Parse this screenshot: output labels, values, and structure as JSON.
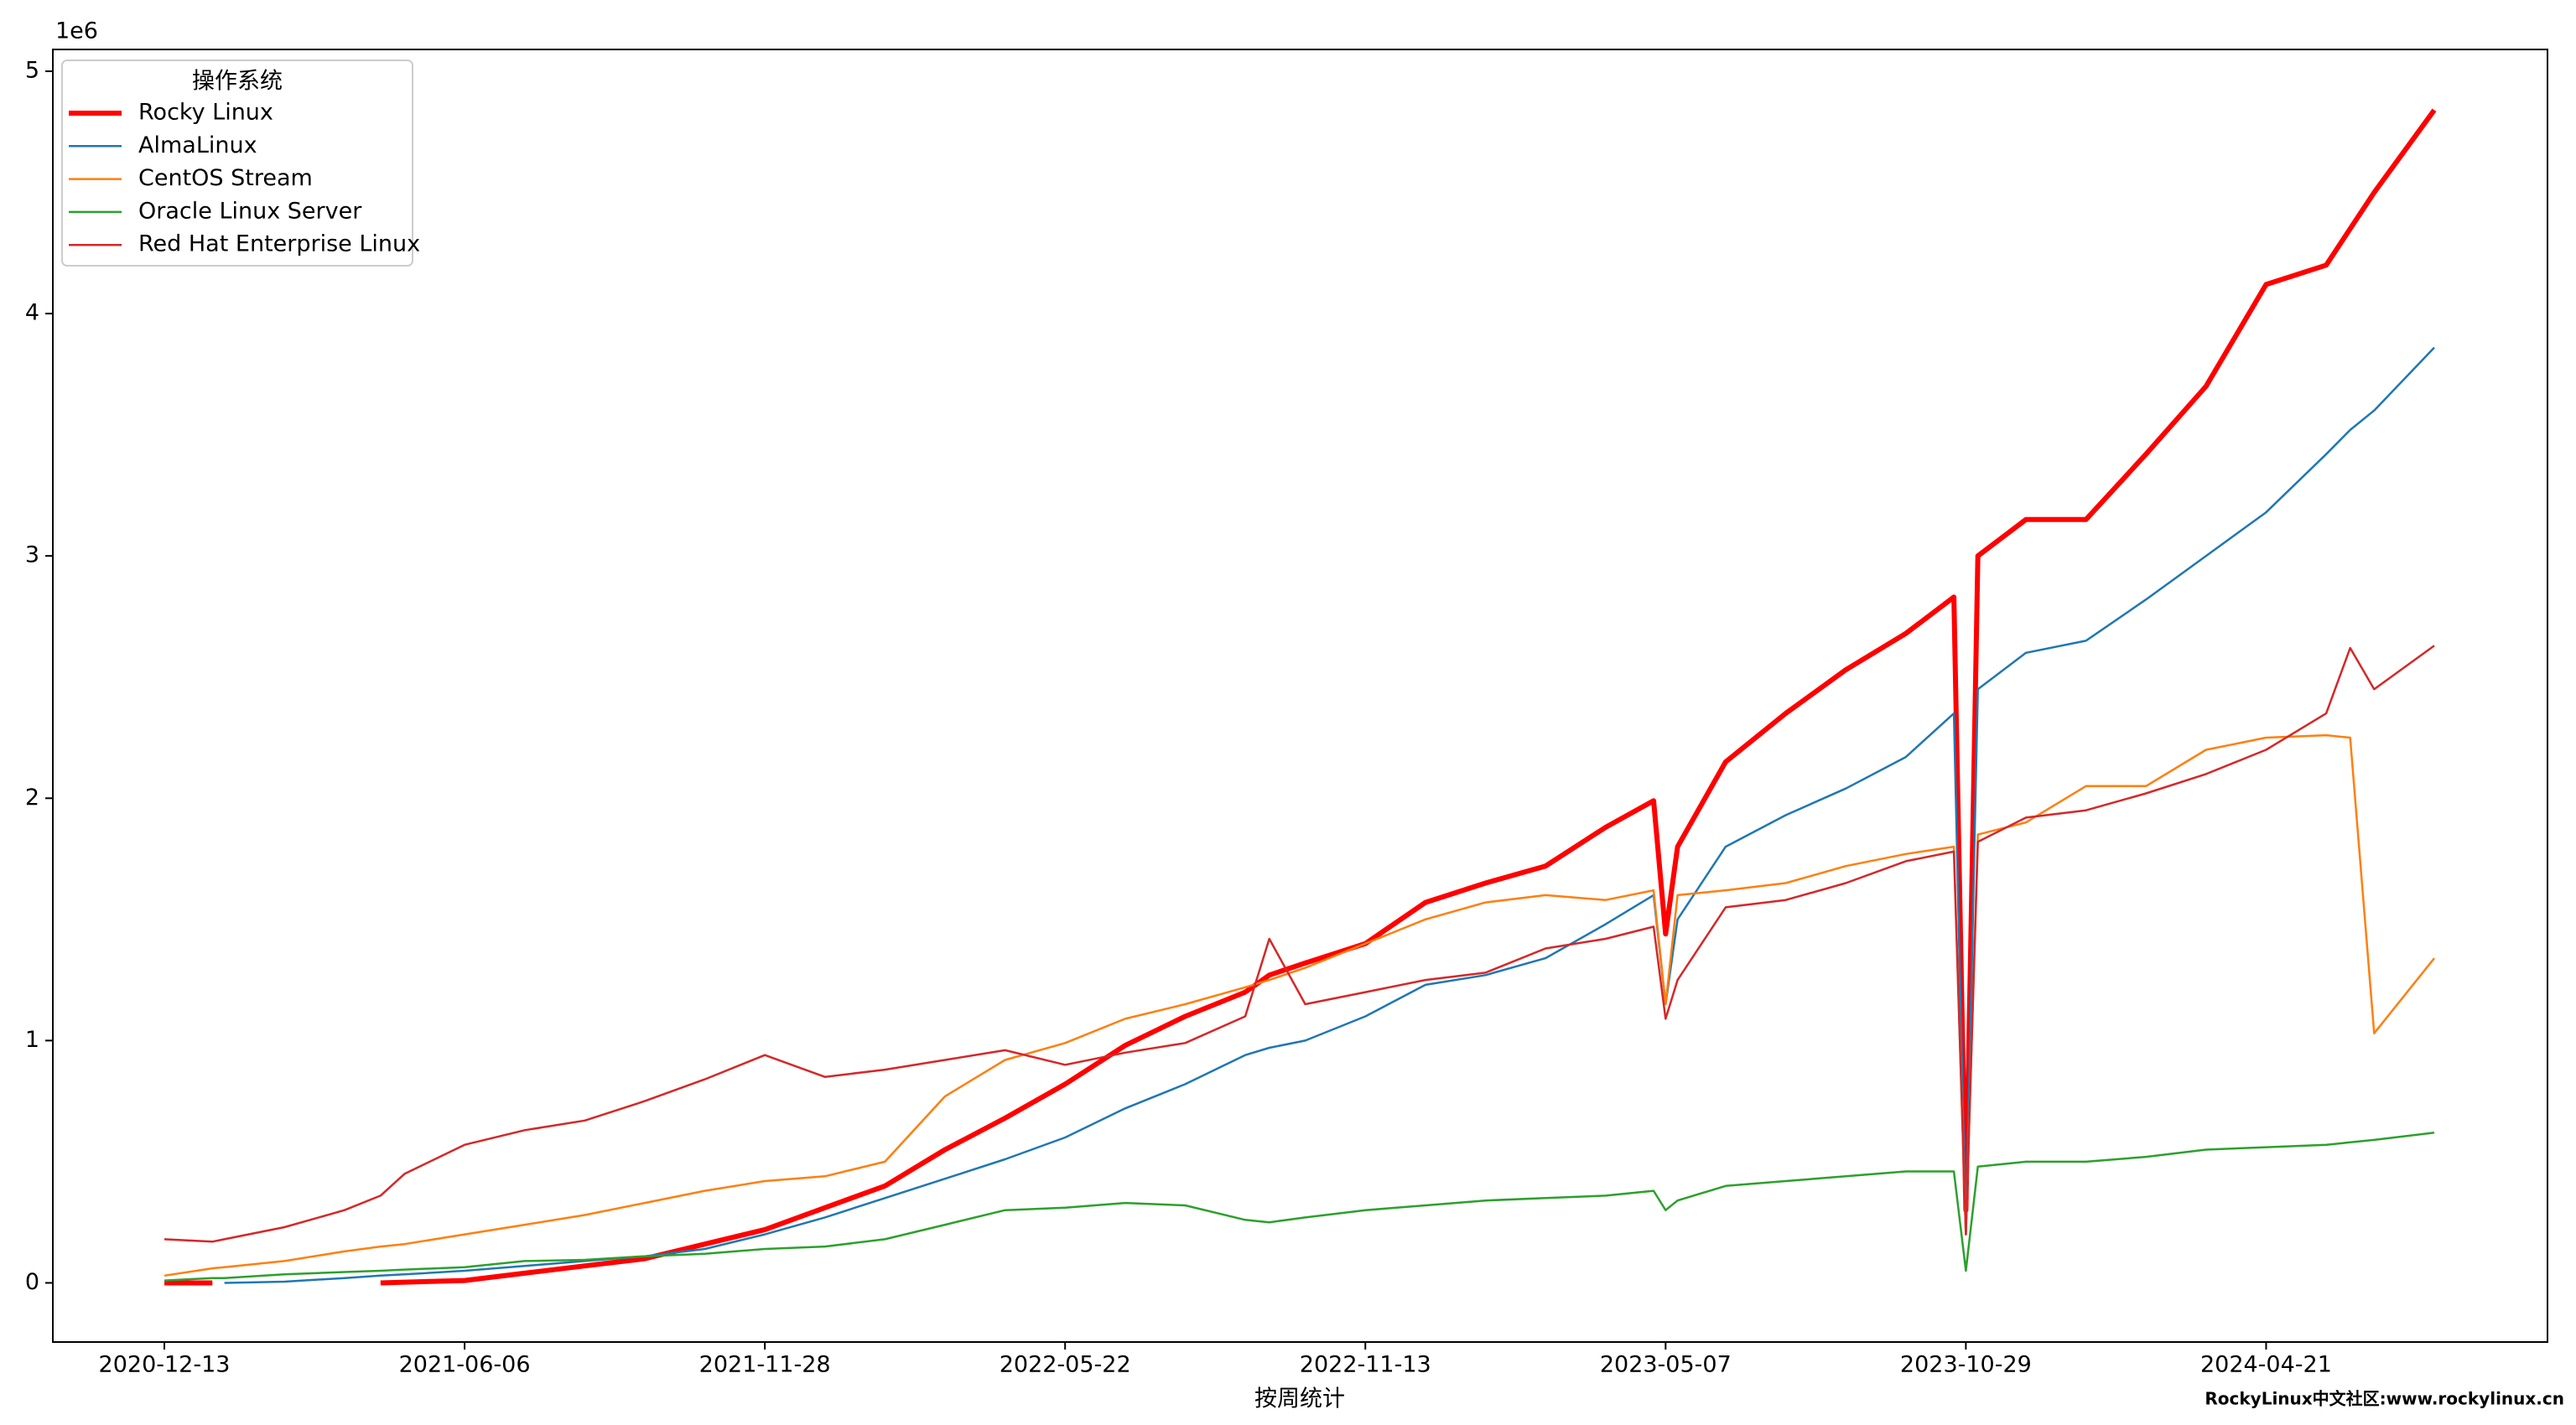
{
  "chart_data": {
    "type": "line",
    "y_offset_label": "1e6",
    "x_label": "按周统计",
    "watermark": "RockyLinux中文社区:www.rockylinux.cn",
    "watermark_color": "#ff0000",
    "legend_title": "操作系统",
    "legend_loc": "upper left",
    "grid": false,
    "xlim": [
      "2020-10-09",
      "2024-10-02"
    ],
    "xticks": [
      "2020-12-13",
      "2021-06-06",
      "2021-11-28",
      "2022-05-22",
      "2022-11-13",
      "2023-05-07",
      "2023-10-29",
      "2024-04-21"
    ],
    "ylim": [
      -0.244,
      5.09
    ],
    "yticks": [
      0,
      1,
      2,
      3,
      4,
      5
    ],
    "x": [
      "2020-12-13",
      "2021-01-10",
      "2021-01-17",
      "2021-02-21",
      "2021-03-28",
      "2021-04-18",
      "2021-05-02",
      "2021-06-06",
      "2021-07-11",
      "2021-08-15",
      "2021-09-19",
      "2021-10-24",
      "2021-11-28",
      "2022-01-02",
      "2022-02-06",
      "2022-03-13",
      "2022-04-17",
      "2022-05-22",
      "2022-06-26",
      "2022-07-31",
      "2022-09-04",
      "2022-09-18",
      "2022-10-09",
      "2022-11-13",
      "2022-12-18",
      "2023-01-22",
      "2023-02-26",
      "2023-04-02",
      "2023-04-30",
      "2023-05-07",
      "2023-05-14",
      "2023-06-11",
      "2023-07-16",
      "2023-08-20",
      "2023-09-24",
      "2023-10-22",
      "2023-10-29",
      "2023-11-05",
      "2023-12-03",
      "2024-01-07",
      "2024-02-11",
      "2024-03-17",
      "2024-04-21",
      "2024-05-26",
      "2024-06-09",
      "2024-06-23",
      "2024-07-28"
    ],
    "series": [
      {
        "name": "Rocky Linux",
        "color": "#ff0000",
        "linewidth": 6,
        "values": [
          0,
          0,
          null,
          null,
          null,
          0,
          0.003,
          0.01,
          0.04,
          0.07,
          0.1,
          0.16,
          0.22,
          0.31,
          0.4,
          0.55,
          0.68,
          0.82,
          0.98,
          1.1,
          1.2,
          1.27,
          1.32,
          1.4,
          1.57,
          1.65,
          1.72,
          1.88,
          1.99,
          1.44,
          1.8,
          2.15,
          2.35,
          2.53,
          2.68,
          2.83,
          0.3,
          3.0,
          3.15,
          3.15,
          3.42,
          3.7,
          4.12,
          4.2,
          4.35,
          4.5,
          4.84
        ]
      },
      {
        "name": "AlmaLinux",
        "color": "#1f77b4",
        "linewidth": 2.5,
        "values": [
          null,
          null,
          0,
          0.005,
          0.02,
          0.03,
          0.035,
          0.05,
          0.07,
          0.09,
          0.11,
          0.14,
          0.2,
          0.27,
          0.35,
          0.43,
          0.51,
          0.6,
          0.72,
          0.82,
          0.94,
          0.97,
          1.0,
          1.1,
          1.23,
          1.27,
          1.34,
          1.48,
          1.6,
          1.15,
          1.5,
          1.8,
          1.93,
          2.04,
          2.17,
          2.35,
          0.2,
          2.45,
          2.6,
          2.65,
          2.82,
          3.0,
          3.18,
          3.42,
          3.52,
          3.6,
          3.86
        ]
      },
      {
        "name": "CentOS Stream",
        "color": "#ff7f0e",
        "linewidth": 2.5,
        "values": [
          0.03,
          0.06,
          0.065,
          0.09,
          0.13,
          0.15,
          0.16,
          0.2,
          0.24,
          0.28,
          0.33,
          0.38,
          0.42,
          0.44,
          0.5,
          0.77,
          0.92,
          0.99,
          1.09,
          1.15,
          1.22,
          1.25,
          1.3,
          1.4,
          1.5,
          1.57,
          1.6,
          1.58,
          1.62,
          1.15,
          1.6,
          1.62,
          1.65,
          1.72,
          1.77,
          1.8,
          0.2,
          1.85,
          1.9,
          2.05,
          2.05,
          2.2,
          2.25,
          2.26,
          2.25,
          1.03,
          1.34
        ]
      },
      {
        "name": "Oracle Linux Server",
        "color": "#2ca02c",
        "linewidth": 2.5,
        "values": [
          0.01,
          0.02,
          0.02,
          0.035,
          0.045,
          0.05,
          0.055,
          0.065,
          0.09,
          0.095,
          0.11,
          0.12,
          0.14,
          0.15,
          0.18,
          0.24,
          0.3,
          0.31,
          0.33,
          0.32,
          0.26,
          0.25,
          0.27,
          0.3,
          0.32,
          0.34,
          0.35,
          0.36,
          0.38,
          0.3,
          0.34,
          0.4,
          0.42,
          0.44,
          0.46,
          0.46,
          0.05,
          0.48,
          0.5,
          0.5,
          0.52,
          0.55,
          0.56,
          0.57,
          0.58,
          0.59,
          0.62
        ]
      },
      {
        "name": "Red Hat Enterprise Linux",
        "color": "#d62728",
        "linewidth": 2.5,
        "values": [
          0.18,
          0.17,
          0.18,
          0.23,
          0.3,
          0.36,
          0.45,
          0.57,
          0.63,
          0.67,
          0.75,
          0.84,
          0.94,
          0.85,
          0.88,
          0.92,
          0.96,
          0.9,
          0.95,
          0.99,
          1.1,
          1.42,
          1.15,
          1.2,
          1.25,
          1.28,
          1.38,
          1.42,
          1.47,
          1.09,
          1.25,
          1.55,
          1.58,
          1.65,
          1.74,
          1.78,
          0.2,
          1.82,
          1.92,
          1.95,
          2.02,
          2.1,
          2.2,
          2.35,
          2.62,
          2.45,
          2.63
        ]
      }
    ]
  }
}
